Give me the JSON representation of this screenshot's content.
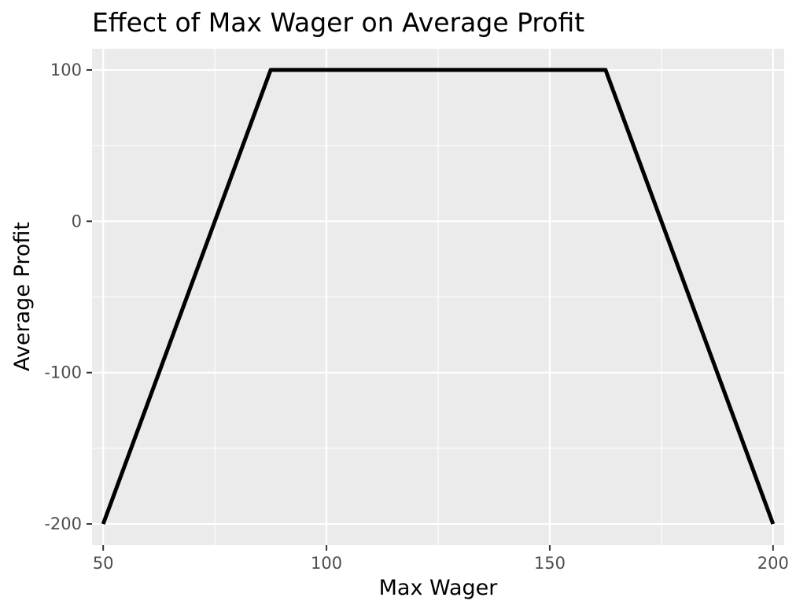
{
  "chart_data": {
    "type": "line",
    "title": "Effect of Max Wager on Average Profit",
    "xlabel": "Max Wager",
    "ylabel": "Average Profit",
    "xlim": [
      47.5,
      202.5
    ],
    "ylim": [
      -214,
      114
    ],
    "x_ticks": [
      50,
      100,
      150,
      200
    ],
    "x_tick_labels": [
      "50",
      "100",
      "150",
      "200"
    ],
    "x_minor_ticks": [
      75,
      125,
      175
    ],
    "y_ticks": [
      -200,
      -100,
      0,
      100
    ],
    "y_tick_labels": [
      "-200",
      "-100",
      "0",
      "100"
    ],
    "y_minor_ticks": [
      -150,
      -50,
      50
    ],
    "grid": true,
    "legend": "none",
    "series": [
      {
        "x": [
          50,
          87.5,
          162.5,
          200
        ],
        "y": [
          -200,
          100,
          100,
          -200
        ]
      }
    ],
    "colors": {
      "panel_background": "#ebebeb",
      "grid_line": "#ffffff",
      "line": "#000000",
      "tick_label": "#4d4d4d",
      "tick_mark": "#333333"
    }
  }
}
